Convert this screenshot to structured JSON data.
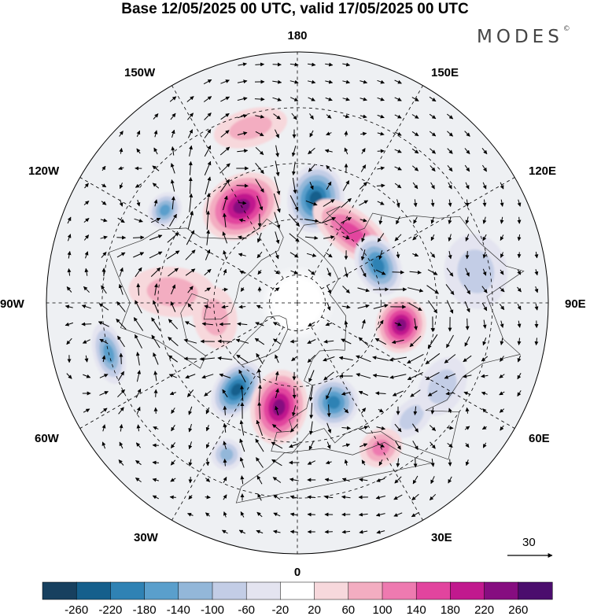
{
  "title": "Base 12/05/2025 00 UTC, valid 17/05/2025 00 UTC",
  "logo": "MODES",
  "logo_mark": "©",
  "longitude_labels": {
    "top": "180",
    "bottom": "0",
    "left": "90W",
    "right": "90E",
    "upper_left_1": "150W",
    "upper_left_2": "120W",
    "upper_right_1": "150E",
    "upper_right_2": "120E",
    "lower_left_1": "60W",
    "lower_left_2": "30W",
    "lower_right_1": "60E",
    "lower_right_2": "30E"
  },
  "vector_scale_label": "30",
  "colorbar": {
    "labels": [
      "-260",
      "-220",
      "-180",
      "-140",
      "-100",
      "-60",
      "-20",
      "20",
      "60",
      "100",
      "140",
      "180",
      "220",
      "260"
    ],
    "colors": [
      "#17405f",
      "#155f8c",
      "#2f82b4",
      "#5a9fcc",
      "#93b7d9",
      "#c3cde6",
      "#e4e4f0",
      "#ffffff",
      "#f7d8dc",
      "#f3adc1",
      "#ee7ab0",
      "#e2449e",
      "#c1198e",
      "#860d80",
      "#4b0d6d"
    ]
  },
  "anomaly_centers": [
    {
      "lon": -150,
      "lat": 50,
      "value": 230,
      "rx": 0.13,
      "ry": 0.1
    },
    {
      "lon": 170,
      "lat": 52,
      "value": -230,
      "rx": 0.09,
      "ry": 0.11
    },
    {
      "lon": 142,
      "lat": 58,
      "value": 170,
      "rx": 0.15,
      "ry": 0.07
    },
    {
      "lon": 115,
      "lat": 58,
      "value": -200,
      "rx": 0.1,
      "ry": 0.07
    },
    {
      "lon": 78,
      "lat": 52,
      "value": 230,
      "rx": 0.09,
      "ry": 0.08
    },
    {
      "lon": -125,
      "lat": 32,
      "value": -150,
      "rx": 0.06,
      "ry": 0.05
    },
    {
      "lon": -95,
      "lat": 45,
      "value": 90,
      "rx": 0.08,
      "ry": 0.14
    },
    {
      "lon": -75,
      "lat": 20,
      "value": -160,
      "rx": 0.1,
      "ry": 0.05
    },
    {
      "lon": -35,
      "lat": 52,
      "value": -220,
      "rx": 0.07,
      "ry": 0.1
    },
    {
      "lon": -10,
      "lat": 52,
      "value": 240,
      "rx": 0.09,
      "ry": 0.12
    },
    {
      "lon": 20,
      "lat": 52,
      "value": -190,
      "rx": 0.08,
      "ry": 0.08
    },
    {
      "lon": 45,
      "lat": 32,
      "value": -90,
      "rx": 0.08,
      "ry": 0.05
    },
    {
      "lon": 30,
      "lat": 30,
      "value": 100,
      "rx": 0.07,
      "ry": 0.06
    },
    {
      "lon": -25,
      "lat": 30,
      "value": -100,
      "rx": 0.05,
      "ry": 0.05
    },
    {
      "lon": 60,
      "lat": 30,
      "value": -70,
      "rx": 0.1,
      "ry": 0.07
    },
    {
      "lon": -80,
      "lat": 60,
      "value": 60,
      "rx": 0.1,
      "ry": 0.07
    },
    {
      "lon": 100,
      "lat": 25,
      "value": -60,
      "rx": 0.12,
      "ry": 0.1
    },
    {
      "lon": -165,
      "lat": 25,
      "value": 60,
      "rx": 0.12,
      "ry": 0.06
    }
  ]
}
